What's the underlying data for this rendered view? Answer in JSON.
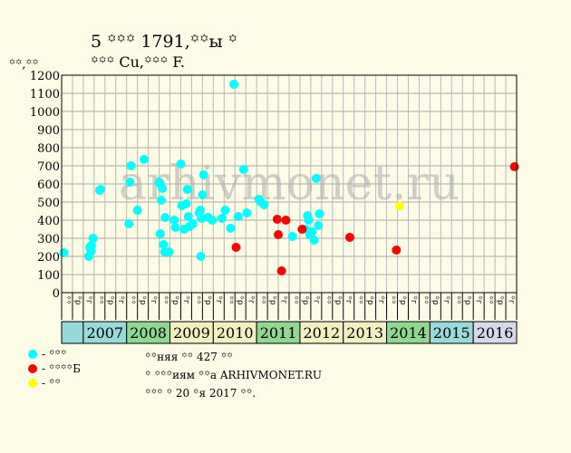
{
  "header": {
    "title": "5 ꙳꙳꙳ 1791,꙳꙳ы ꙳",
    "subtitle": "꙳꙳꙳ Cu,꙳꙳꙳ F.",
    "y_unit": "꙳꙳,꙳꙳"
  },
  "watermark": "arhivmonet.ru",
  "legend": [
    {
      "label": "- ꙳꙳꙳",
      "color": "#00ffff"
    },
    {
      "label": "- ꙳꙳꙳꙳Б",
      "color": "#ff0000"
    },
    {
      "label": "- ꙳꙳",
      "color": "#ffff00"
    }
  ],
  "notes": {
    "line1": "꙳꙳няя ꙳꙳ 427 ꙳꙳",
    "line2": "꙳ ꙳꙳꙳иям ꙳꙳а ARHIVMONET.RU",
    "line3": "꙳꙳꙳ ꙳ 20 ꙳я 2017 ꙳꙳."
  },
  "chart_data": {
    "type": "scatter",
    "ylim": [
      0,
      1200
    ],
    "y_ticks": [
      0,
      100,
      200,
      300,
      400,
      500,
      600,
      700,
      800,
      900,
      1000,
      1100,
      1200
    ],
    "grid": true,
    "x_subticks": [
      "꙳꙳",
      "꙳р",
      "꙳г",
      "꙳꙳",
      "꙳р",
      "꙳г",
      "꙳꙳",
      "꙳р",
      "꙳г",
      "꙳꙳",
      "꙳р",
      "꙳г",
      "꙳꙳",
      "꙳р",
      "꙳г",
      "꙳꙳",
      "꙳р",
      "꙳г",
      "꙳꙳",
      "꙳р",
      "꙳г",
      "꙳꙳",
      "꙳р",
      "꙳г",
      "꙳꙳",
      "꙳р",
      "꙳г",
      "꙳꙳",
      "꙳р",
      "꙳г",
      "꙳꙳",
      "꙳р",
      "꙳г",
      "꙳꙳",
      "꙳р",
      "꙳г",
      "꙳꙳",
      "꙳р",
      "꙳г",
      "꙳꙳",
      "꙳р",
      "꙳г"
    ],
    "years": [
      {
        "label": "",
        "color": "#9ad9d9"
      },
      {
        "label": "2007",
        "color": "#9ad9d9"
      },
      {
        "label": "2008",
        "color": "#90d890"
      },
      {
        "label": "2009",
        "color": "#f0f0c0"
      },
      {
        "label": "2010",
        "color": "#f0f0c0"
      },
      {
        "label": "2011",
        "color": "#90d890"
      },
      {
        "label": "2012",
        "color": "#f0f0c0"
      },
      {
        "label": "2013",
        "color": "#f0f0c0"
      },
      {
        "label": "2014",
        "color": "#90d890"
      },
      {
        "label": "2015",
        "color": "#9ad9d9"
      },
      {
        "label": "2016",
        "color": "#d8d8ec"
      },
      {
        "label": "",
        "color": "#90d890"
      }
    ],
    "series": [
      {
        "color": "#00ffff",
        "points": [
          [
            0.2,
            220
          ],
          [
            2.5,
            200
          ],
          [
            2.6,
            250
          ],
          [
            2.7,
            230
          ],
          [
            2.75,
            260
          ],
          [
            2.9,
            300
          ],
          [
            3.5,
            565
          ],
          [
            3.6,
            570
          ],
          [
            6.2,
            380
          ],
          [
            6.3,
            610
          ],
          [
            6.4,
            700
          ],
          [
            7.0,
            455
          ],
          [
            7.6,
            735
          ],
          [
            9.0,
            610
          ],
          [
            9.1,
            600
          ],
          [
            9.2,
            510
          ],
          [
            9.3,
            575
          ],
          [
            9.1,
            325
          ],
          [
            9.4,
            265
          ],
          [
            9.5,
            225
          ],
          [
            9.55,
            415
          ],
          [
            9.9,
            225
          ],
          [
            10.4,
            400
          ],
          [
            10.5,
            360
          ],
          [
            11.0,
            710
          ],
          [
            11.1,
            480
          ],
          [
            11.3,
            350
          ],
          [
            11.5,
            490
          ],
          [
            11.6,
            570
          ],
          [
            11.7,
            420
          ],
          [
            11.8,
            365
          ],
          [
            12.1,
            380
          ],
          [
            12.7,
            440
          ],
          [
            12.8,
            455
          ],
          [
            12.85,
            200
          ],
          [
            12.9,
            410
          ],
          [
            13.0,
            540
          ],
          [
            13.1,
            650
          ],
          [
            13.5,
            415
          ],
          [
            13.9,
            400
          ],
          [
            14.8,
            410
          ],
          [
            15.1,
            455
          ],
          [
            15.6,
            355
          ],
          [
            15.9,
            1150
          ],
          [
            16.3,
            420
          ],
          [
            16.8,
            680
          ],
          [
            17.1,
            440
          ],
          [
            18.2,
            515
          ],
          [
            18.4,
            500
          ],
          [
            18.7,
            485
          ],
          [
            21.3,
            310
          ],
          [
            22.5,
            350
          ],
          [
            22.7,
            425
          ],
          [
            22.8,
            400
          ],
          [
            22.9,
            320
          ],
          [
            23.1,
            335
          ],
          [
            23.3,
            290
          ],
          [
            23.5,
            630
          ],
          [
            23.7,
            370
          ],
          [
            23.8,
            435
          ]
        ]
      },
      {
        "color": "#ff0000",
        "points": [
          [
            16.1,
            250
          ],
          [
            19.9,
            405
          ],
          [
            20.0,
            320
          ],
          [
            20.3,
            120
          ],
          [
            20.7,
            400
          ],
          [
            22.2,
            350
          ],
          [
            26.6,
            305
          ],
          [
            30.9,
            235
          ],
          [
            41.8,
            695
          ]
        ]
      },
      {
        "color": "#ffff00",
        "points": [
          [
            31.2,
            478
          ]
        ]
      }
    ]
  }
}
